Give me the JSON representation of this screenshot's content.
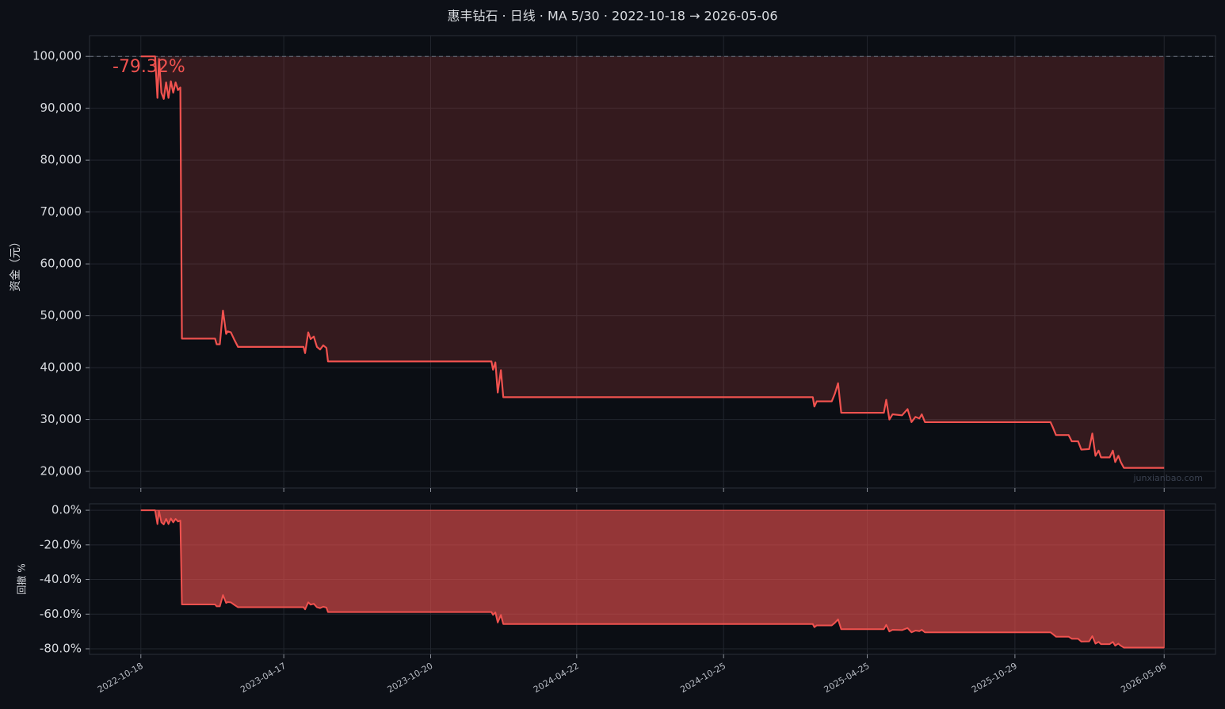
{
  "chart_data": [
    {
      "type": "line",
      "title": "惠丰钻石 · 日线 · MA 5/30 · 2022-10-18 → 2026-05-06",
      "y_label": "资金（元）",
      "annotation": "-79.32%",
      "watermark": "junxianbao.com",
      "reference_line": 100000,
      "x": [
        "2022-10-18",
        "2022-11-05",
        "2022-11-08",
        "2022-11-10",
        "2022-11-13",
        "2022-11-16",
        "2022-11-19",
        "2022-11-22",
        "2022-11-25",
        "2022-11-28",
        "2022-12-01",
        "2022-12-04",
        "2022-12-07",
        "2022-12-09",
        "2023-01-20",
        "2023-01-22",
        "2023-01-26",
        "2023-01-30",
        "2023-02-03",
        "2023-02-05",
        "2023-02-09",
        "2023-02-13",
        "2023-02-18",
        "2023-05-12",
        "2023-05-14",
        "2023-05-18",
        "2023-05-21",
        "2023-05-25",
        "2023-05-29",
        "2023-06-02",
        "2023-06-06",
        "2023-06-10",
        "2023-06-12",
        "2024-01-05",
        "2024-01-07",
        "2024-01-10",
        "2024-01-13",
        "2024-01-17",
        "2024-01-20",
        "2025-02-15",
        "2025-02-17",
        "2025-02-20",
        "2025-03-11",
        "2025-03-15",
        "2025-03-19",
        "2025-03-23",
        "2025-05-16",
        "2025-05-19",
        "2025-05-23",
        "2025-05-27",
        "2025-06-08",
        "2025-06-15",
        "2025-06-20",
        "2025-06-25",
        "2025-06-30",
        "2025-07-03",
        "2025-07-07",
        "2025-12-13",
        "2025-12-16",
        "2025-12-20",
        "2026-01-05",
        "2026-01-09",
        "2026-01-17",
        "2026-01-21",
        "2026-01-31",
        "2026-02-04",
        "2026-02-08",
        "2026-02-12",
        "2026-02-15",
        "2026-02-26",
        "2026-03-02",
        "2026-03-05",
        "2026-03-09",
        "2026-03-12",
        "2026-03-16",
        "2026-05-06"
      ],
      "xlim": [
        "2022-08-14",
        "2026-07-10"
      ],
      "xticks": [
        "2022-10-18",
        "2023-04-17",
        "2023-10-20",
        "2024-04-22",
        "2024-10-25",
        "2025-04-25",
        "2025-10-29",
        "2026-05-06"
      ],
      "series": [
        {
          "color": "#f0524f",
          "values": [
            100000,
            100000,
            92000,
            99500,
            93000,
            91800,
            95000,
            92000,
            95200,
            93000,
            95000,
            93500,
            94000,
            45600,
            45600,
            44500,
            44500,
            51000,
            46500,
            47000,
            46800,
            45500,
            44000,
            44000,
            42800,
            46800,
            45500,
            46000,
            44000,
            43500,
            44300,
            43800,
            41200,
            41200,
            39600,
            41000,
            35200,
            39500,
            34300,
            34300,
            32500,
            33500,
            33500,
            35000,
            37000,
            31300,
            31300,
            33800,
            30000,
            31000,
            30800,
            32000,
            29500,
            30500,
            30200,
            31000,
            29500,
            29500,
            28500,
            27000,
            27000,
            25800,
            25800,
            24200,
            24300,
            27300,
            23000,
            24000,
            22700,
            22700,
            24000,
            21800,
            23000,
            21800,
            20680,
            20680
          ]
        }
      ],
      "ylim": [
        16800,
        104000
      ],
      "yticks": [
        {
          "value": 20000,
          "label": "20,000"
        },
        {
          "value": 30000,
          "label": "30,000"
        },
        {
          "value": 40000,
          "label": "40,000"
        },
        {
          "value": 50000,
          "label": "50,000"
        },
        {
          "value": 60000,
          "label": "60,000"
        },
        {
          "value": 70000,
          "label": "70,000"
        },
        {
          "value": 80000,
          "label": "80,000"
        },
        {
          "value": 90000,
          "label": "90,000"
        },
        {
          "value": 100000,
          "label": "100,000"
        }
      ],
      "grid": true
    },
    {
      "type": "area",
      "y_label": "回撤 %",
      "series": [
        {
          "color": "#f0524f",
          "values": [
            0,
            0,
            -8,
            -0.5,
            -7,
            -8.2,
            -5,
            -8,
            -4.8,
            -7,
            -5,
            -6.5,
            -6,
            -54.4,
            -54.4,
            -55.5,
            -55.5,
            -49,
            -53.5,
            -53,
            -53.2,
            -54.5,
            -56,
            -56,
            -57.2,
            -53.2,
            -54.5,
            -54,
            -56,
            -56.5,
            -55.7,
            -56.2,
            -58.8,
            -58.8,
            -60.4,
            -59,
            -64.8,
            -60.5,
            -65.7,
            -65.7,
            -67.5,
            -66.5,
            -66.5,
            -65,
            -63,
            -68.7,
            -68.7,
            -66.2,
            -70,
            -69,
            -69.2,
            -68,
            -70.5,
            -69.5,
            -69.8,
            -69,
            -70.5,
            -70.5,
            -71.5,
            -73,
            -73,
            -74.2,
            -74.2,
            -75.8,
            -75.7,
            -72.7,
            -77,
            -76,
            -77.3,
            -77.3,
            -76,
            -78.2,
            -77,
            -78.2,
            -79.32,
            -79.32
          ]
        }
      ],
      "ylim": [
        -83.2,
        3.7
      ],
      "yticks": [
        {
          "value": -80,
          "label": "-80.0%"
        },
        {
          "value": -60,
          "label": "-60.0%"
        },
        {
          "value": -40,
          "label": "-40.0%"
        },
        {
          "value": -20,
          "label": "-20.0%"
        },
        {
          "value": 0,
          "label": "0.0%"
        }
      ],
      "grid": true
    }
  ]
}
